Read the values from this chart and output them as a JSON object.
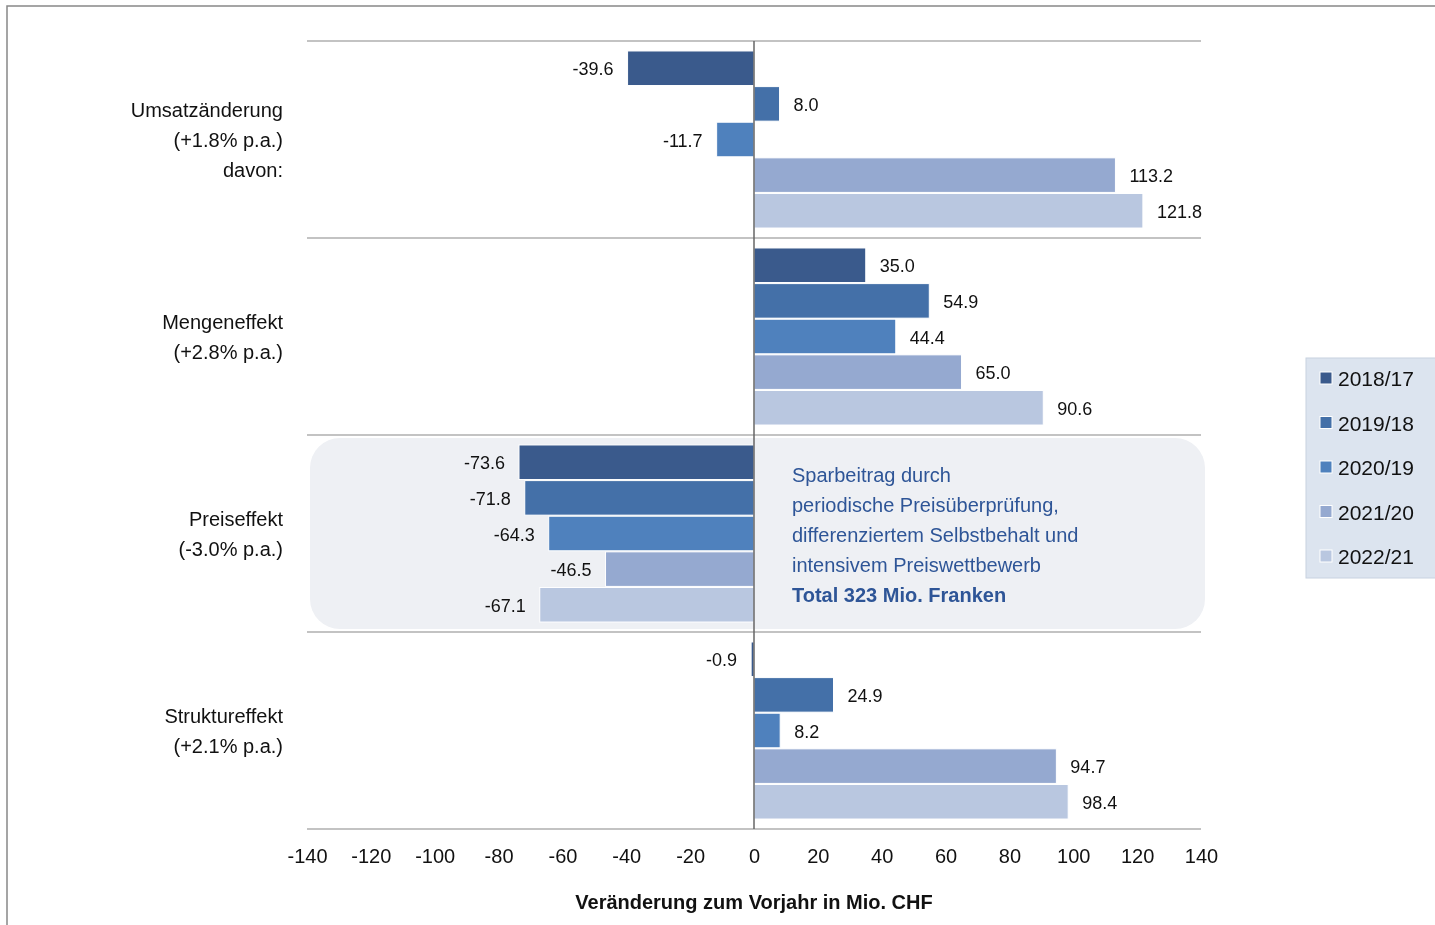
{
  "chart_data": {
    "type": "bar",
    "orientation": "horizontal",
    "categories": [
      "Umsatzänderung\n(+1.8% p.a.)",
      "Mengeneffekt\n(+2.8% p.a.)",
      "Preiseffekt\n(-3.0% p.a.)",
      "Struktureffekt\n(+2.1% p.a.)"
    ],
    "series": [
      {
        "name": "2018/17",
        "color": "#3a5a8c",
        "values": [
          -39.6,
          35.0,
          -73.6,
          -0.9
        ],
        "value_labels": [
          "-39.6",
          "35.0",
          "-73.6",
          "-0.9"
        ]
      },
      {
        "name": "2019/18",
        "color": "#4470a8",
        "values": [
          8.0,
          54.9,
          -71.8,
          24.9
        ],
        "value_labels": [
          "8.0",
          "54.9",
          "-71.8",
          "24.9"
        ]
      },
      {
        "name": "2020/19",
        "color": "#4f81bd",
        "values": [
          -11.7,
          44.4,
          -64.3,
          8.2
        ],
        "value_labels": [
          "-11.7",
          "44.4",
          "-64.3",
          "8.2"
        ]
      },
      {
        "name": "2021/20",
        "color": "#95a9d0",
        "values": [
          113.2,
          65.0,
          -46.5,
          94.7
        ],
        "value_labels": [
          "113.2",
          "65.0",
          "-46.5",
          "94.7"
        ]
      },
      {
        "name": "2022/21",
        "color": "#b9c7e0",
        "values": [
          121.8,
          90.6,
          -67.1,
          98.4
        ],
        "value_labels": [
          "121.8",
          "90.6",
          "-67.1",
          "98.4"
        ]
      }
    ],
    "xlim": [
      -140,
      140
    ],
    "xticks": [
      -140,
      -120,
      -100,
      -80,
      -60,
      -40,
      -20,
      0,
      20,
      40,
      60,
      80,
      100,
      120,
      140
    ],
    "xlabel": "Veränderung zum Vorjahr in Mio. CHF",
    "annotations": [
      "davon:",
      "Sparbeitrag durch\nperiodische Preisüberprüfung,\ndifferenziertem Selbstbehalt und\nintensivem Preiswettbewerb",
      "Total 323 Mio. Franken"
    ],
    "legend": "right"
  }
}
